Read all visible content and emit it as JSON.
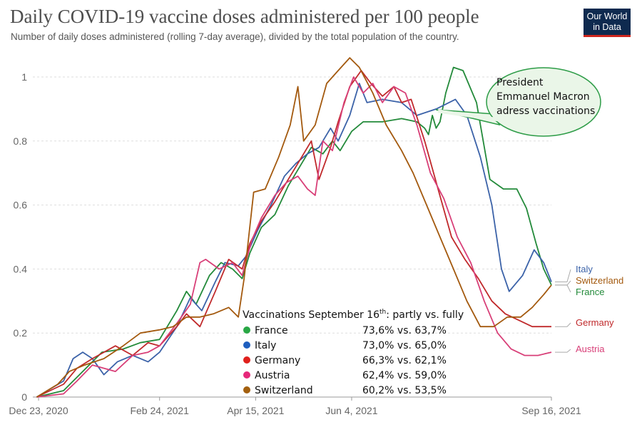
{
  "header": {
    "title": "Daily COVID-19 vaccine doses administered per 100 people",
    "subtitle": "Number of daily doses administered (rolling 7-day average), divided by the total population of the country.",
    "logo_line1": "Our World",
    "logo_line2": "in Data"
  },
  "chart_data": {
    "type": "line",
    "title": "Daily COVID-19 vaccine doses administered per 100 people",
    "subtitle": "Number of daily doses administered (rolling 7-day average), divided by the total population of the country.",
    "ylim": [
      0,
      1.05
    ],
    "y_ticks": [
      0,
      0.2,
      0.4,
      0.6,
      0.8,
      1
    ],
    "y_tick_labels": [
      "0",
      "0.2",
      "0.4",
      "0.6",
      "0.8",
      "1"
    ],
    "x_range": [
      "2020-12-20",
      "2021-09-16"
    ],
    "x_ticks": [
      "2020-12-23",
      "2021-02-24",
      "2021-04-15",
      "2021-06-04",
      "2021-09-16"
    ],
    "x_tick_labels": [
      "Dec 23, 2020",
      "Feb 24, 2021",
      "Apr 15, 2021",
      "Jun 4, 2021",
      "Sep 16, 2021"
    ],
    "grid": "horizontal dashed",
    "series": [
      {
        "name": "France",
        "color": "#238a3a",
        "points": [
          [
            "2020-12-22",
            0.0
          ],
          [
            "2021-01-05",
            0.02
          ],
          [
            "2021-01-15",
            0.08
          ],
          [
            "2021-01-25",
            0.14
          ],
          [
            "2021-02-05",
            0.15
          ],
          [
            "2021-02-14",
            0.17
          ],
          [
            "2021-02-24",
            0.18
          ],
          [
            "2021-03-05",
            0.27
          ],
          [
            "2021-03-10",
            0.33
          ],
          [
            "2021-03-15",
            0.29
          ],
          [
            "2021-03-22",
            0.38
          ],
          [
            "2021-03-28",
            0.42
          ],
          [
            "2021-04-03",
            0.4
          ],
          [
            "2021-04-08",
            0.37
          ],
          [
            "2021-04-12",
            0.45
          ],
          [
            "2021-04-18",
            0.53
          ],
          [
            "2021-04-25",
            0.57
          ],
          [
            "2021-05-02",
            0.66
          ],
          [
            "2021-05-08",
            0.72
          ],
          [
            "2021-05-14",
            0.78
          ],
          [
            "2021-05-20",
            0.76
          ],
          [
            "2021-05-25",
            0.8
          ],
          [
            "2021-05-29",
            0.77
          ],
          [
            "2021-06-04",
            0.83
          ],
          [
            "2021-06-10",
            0.86
          ],
          [
            "2021-06-20",
            0.86
          ],
          [
            "2021-06-30",
            0.87
          ],
          [
            "2021-07-08",
            0.86
          ],
          [
            "2021-07-12",
            0.84
          ],
          [
            "2021-07-14",
            0.82
          ],
          [
            "2021-07-16",
            0.88
          ],
          [
            "2021-07-18",
            0.84
          ],
          [
            "2021-07-20",
            0.86
          ],
          [
            "2021-07-23",
            0.95
          ],
          [
            "2021-07-27",
            1.03
          ],
          [
            "2021-08-01",
            1.02
          ],
          [
            "2021-08-08",
            0.92
          ],
          [
            "2021-08-15",
            0.68
          ],
          [
            "2021-08-22",
            0.65
          ],
          [
            "2021-08-29",
            0.65
          ],
          [
            "2021-09-03",
            0.59
          ],
          [
            "2021-09-08",
            0.48
          ],
          [
            "2021-09-12",
            0.4
          ],
          [
            "2021-09-16",
            0.35
          ]
        ]
      },
      {
        "name": "Italy",
        "color": "#3b62a8",
        "points": [
          [
            "2020-12-22",
            0.0
          ],
          [
            "2021-01-05",
            0.05
          ],
          [
            "2021-01-10",
            0.12
          ],
          [
            "2021-01-15",
            0.14
          ],
          [
            "2021-01-20",
            0.12
          ],
          [
            "2021-01-26",
            0.07
          ],
          [
            "2021-02-02",
            0.11
          ],
          [
            "2021-02-10",
            0.13
          ],
          [
            "2021-02-18",
            0.11
          ],
          [
            "2021-02-24",
            0.14
          ],
          [
            "2021-03-05",
            0.22
          ],
          [
            "2021-03-12",
            0.31
          ],
          [
            "2021-03-18",
            0.27
          ],
          [
            "2021-03-25",
            0.36
          ],
          [
            "2021-03-30",
            0.42
          ],
          [
            "2021-04-06",
            0.41
          ],
          [
            "2021-04-10",
            0.44
          ],
          [
            "2021-04-16",
            0.52
          ],
          [
            "2021-04-23",
            0.6
          ],
          [
            "2021-04-30",
            0.69
          ],
          [
            "2021-05-06",
            0.73
          ],
          [
            "2021-05-12",
            0.76
          ],
          [
            "2021-05-18",
            0.78
          ],
          [
            "2021-05-24",
            0.84
          ],
          [
            "2021-05-28",
            0.8
          ],
          [
            "2021-06-03",
            0.88
          ],
          [
            "2021-06-08",
            0.98
          ],
          [
            "2021-06-12",
            0.92
          ],
          [
            "2021-06-20",
            0.93
          ],
          [
            "2021-06-30",
            0.92
          ],
          [
            "2021-07-08",
            0.88
          ],
          [
            "2021-07-18",
            0.9
          ],
          [
            "2021-07-28",
            0.93
          ],
          [
            "2021-08-03",
            0.88
          ],
          [
            "2021-08-10",
            0.75
          ],
          [
            "2021-08-16",
            0.6
          ],
          [
            "2021-08-21",
            0.4
          ],
          [
            "2021-08-25",
            0.33
          ],
          [
            "2021-09-01",
            0.38
          ],
          [
            "2021-09-07",
            0.46
          ],
          [
            "2021-09-12",
            0.42
          ],
          [
            "2021-09-16",
            0.36
          ]
        ]
      },
      {
        "name": "Germany",
        "color": "#c0292b",
        "points": [
          [
            "2020-12-22",
            0.0
          ],
          [
            "2021-01-05",
            0.04
          ],
          [
            "2021-01-12",
            0.09
          ],
          [
            "2021-01-20",
            0.12
          ],
          [
            "2021-02-01",
            0.16
          ],
          [
            "2021-02-10",
            0.13
          ],
          [
            "2021-02-18",
            0.17
          ],
          [
            "2021-02-24",
            0.16
          ],
          [
            "2021-03-05",
            0.22
          ],
          [
            "2021-03-10",
            0.26
          ],
          [
            "2021-03-17",
            0.22
          ],
          [
            "2021-03-25",
            0.33
          ],
          [
            "2021-04-01",
            0.43
          ],
          [
            "2021-04-08",
            0.4
          ],
          [
            "2021-04-12",
            0.48
          ],
          [
            "2021-04-18",
            0.55
          ],
          [
            "2021-04-25",
            0.61
          ],
          [
            "2021-05-02",
            0.68
          ],
          [
            "2021-05-08",
            0.74
          ],
          [
            "2021-05-14",
            0.8
          ],
          [
            "2021-05-18",
            0.68
          ],
          [
            "2021-05-24",
            0.78
          ],
          [
            "2021-05-28",
            0.86
          ],
          [
            "2021-06-03",
            0.97
          ],
          [
            "2021-06-09",
            1.02
          ],
          [
            "2021-06-14",
            0.98
          ],
          [
            "2021-06-20",
            0.94
          ],
          [
            "2021-06-26",
            0.97
          ],
          [
            "2021-06-30",
            0.92
          ],
          [
            "2021-07-05",
            0.93
          ],
          [
            "2021-07-12",
            0.8
          ],
          [
            "2021-07-19",
            0.65
          ],
          [
            "2021-07-26",
            0.5
          ],
          [
            "2021-08-02",
            0.43
          ],
          [
            "2021-08-09",
            0.37
          ],
          [
            "2021-08-16",
            0.3
          ],
          [
            "2021-08-23",
            0.26
          ],
          [
            "2021-08-30",
            0.24
          ],
          [
            "2021-09-06",
            0.22
          ],
          [
            "2021-09-16",
            0.22
          ]
        ]
      },
      {
        "name": "Austria",
        "color": "#d83f78",
        "points": [
          [
            "2020-12-22",
            0.0
          ],
          [
            "2021-01-05",
            0.01
          ],
          [
            "2021-01-12",
            0.05
          ],
          [
            "2021-01-20",
            0.1
          ],
          [
            "2021-02-01",
            0.08
          ],
          [
            "2021-02-10",
            0.13
          ],
          [
            "2021-02-18",
            0.14
          ],
          [
            "2021-02-24",
            0.16
          ],
          [
            "2021-03-05",
            0.23
          ],
          [
            "2021-03-12",
            0.29
          ],
          [
            "2021-03-17",
            0.42
          ],
          [
            "2021-03-20",
            0.43
          ],
          [
            "2021-03-27",
            0.4
          ],
          [
            "2021-04-03",
            0.42
          ],
          [
            "2021-04-08",
            0.38
          ],
          [
            "2021-04-13",
            0.49
          ],
          [
            "2021-04-18",
            0.56
          ],
          [
            "2021-04-25",
            0.63
          ],
          [
            "2021-05-01",
            0.67
          ],
          [
            "2021-05-07",
            0.69
          ],
          [
            "2021-05-12",
            0.65
          ],
          [
            "2021-05-16",
            0.63
          ],
          [
            "2021-05-20",
            0.8
          ],
          [
            "2021-05-25",
            0.77
          ],
          [
            "2021-05-31",
            0.92
          ],
          [
            "2021-06-05",
            1.0
          ],
          [
            "2021-06-10",
            0.95
          ],
          [
            "2021-06-15",
            0.98
          ],
          [
            "2021-06-20",
            0.92
          ],
          [
            "2021-06-26",
            0.97
          ],
          [
            "2021-07-02",
            0.95
          ],
          [
            "2021-07-08",
            0.85
          ],
          [
            "2021-07-15",
            0.7
          ],
          [
            "2021-07-22",
            0.62
          ],
          [
            "2021-07-29",
            0.5
          ],
          [
            "2021-08-05",
            0.42
          ],
          [
            "2021-08-12",
            0.3
          ],
          [
            "2021-08-19",
            0.2
          ],
          [
            "2021-08-26",
            0.15
          ],
          [
            "2021-09-02",
            0.13
          ],
          [
            "2021-09-09",
            0.13
          ],
          [
            "2021-09-16",
            0.14
          ]
        ]
      },
      {
        "name": "Switzerland",
        "color": "#a3590e",
        "points": [
          [
            "2020-12-22",
            0.0
          ],
          [
            "2021-01-02",
            0.04
          ],
          [
            "2021-01-08",
            0.08
          ],
          [
            "2021-01-16",
            0.1
          ],
          [
            "2021-01-26",
            0.12
          ],
          [
            "2021-02-05",
            0.16
          ],
          [
            "2021-02-14",
            0.2
          ],
          [
            "2021-02-24",
            0.21
          ],
          [
            "2021-03-03",
            0.22
          ],
          [
            "2021-03-10",
            0.25
          ],
          [
            "2021-03-17",
            0.25
          ],
          [
            "2021-03-24",
            0.26
          ],
          [
            "2021-04-01",
            0.28
          ],
          [
            "2021-04-06",
            0.25
          ],
          [
            "2021-04-09",
            0.37
          ],
          [
            "2021-04-14",
            0.64
          ],
          [
            "2021-04-20",
            0.65
          ],
          [
            "2021-04-27",
            0.75
          ],
          [
            "2021-05-03",
            0.85
          ],
          [
            "2021-05-07",
            0.97
          ],
          [
            "2021-05-10",
            0.8
          ],
          [
            "2021-05-16",
            0.85
          ],
          [
            "2021-05-22",
            0.98
          ],
          [
            "2021-05-28",
            1.02
          ],
          [
            "2021-06-03",
            1.06
          ],
          [
            "2021-06-08",
            1.03
          ],
          [
            "2021-06-15",
            0.95
          ],
          [
            "2021-06-22",
            0.85
          ],
          [
            "2021-06-30",
            0.77
          ],
          [
            "2021-07-06",
            0.7
          ],
          [
            "2021-07-13",
            0.6
          ],
          [
            "2021-07-20",
            0.5
          ],
          [
            "2021-07-27",
            0.4
          ],
          [
            "2021-08-03",
            0.3
          ],
          [
            "2021-08-10",
            0.22
          ],
          [
            "2021-08-17",
            0.22
          ],
          [
            "2021-08-24",
            0.25
          ],
          [
            "2021-08-31",
            0.25
          ],
          [
            "2021-09-06",
            0.28
          ],
          [
            "2021-09-12",
            0.32
          ],
          [
            "2021-09-16",
            0.35
          ]
        ]
      }
    ],
    "end_labels": [
      {
        "name": "Italy",
        "color": "#3b62a8"
      },
      {
        "name": "Switzerland",
        "color": "#a3590e"
      },
      {
        "name": "France",
        "color": "#238a3a"
      },
      {
        "name": "Germany",
        "color": "#c0292b"
      },
      {
        "name": "Austria",
        "color": "#d83f78"
      }
    ],
    "annotation": {
      "lines": [
        "President",
        "Emmanuel Macron",
        "adress vaccinations"
      ],
      "date": "2021-07-16",
      "border_color": "#2d9c47",
      "fill_color": "#eaf6e8"
    },
    "legend": {
      "title_prefix": "Vaccinations September 16",
      "title_sup": "th",
      "title_suffix": ": partly vs. fully",
      "placement": "bottom-center",
      "rows": [
        {
          "name": "France",
          "value": "73,6% vs. 63,7%",
          "color": "#28a745"
        },
        {
          "name": "Italy",
          "value": "73,0% vs. 65,0%",
          "color": "#1f5fbf"
        },
        {
          "name": "Germany",
          "value": "66,3% vs. 62,1%",
          "color": "#e0201c"
        },
        {
          "name": "Austria",
          "value": "62,4% vs. 59,0%",
          "color": "#e6287a"
        },
        {
          "name": "Switzerland",
          "value": "60,2% vs. 53,5%",
          "color": "#a3600f"
        }
      ]
    }
  }
}
